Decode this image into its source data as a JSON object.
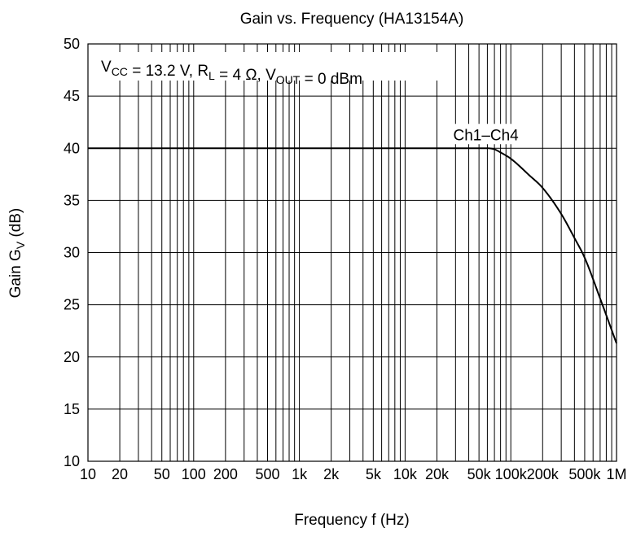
{
  "chart_data": {
    "type": "line",
    "title": "Gain vs. Frequency (HA13154A)",
    "xlabel": {
      "main": "Frequency  f  (Hz)"
    },
    "ylabel": {
      "main": "Gain  G",
      "sub": "V",
      "unit": "  (dB)"
    },
    "x_scale": "log",
    "xlim": [
      10,
      1000000
    ],
    "ylim": [
      10,
      50
    ],
    "grid": true,
    "x_ticks": [
      {
        "value": 10,
        "label": "10"
      },
      {
        "value": 20,
        "label": "20"
      },
      {
        "value": 50,
        "label": "50"
      },
      {
        "value": 100,
        "label": "100"
      },
      {
        "value": 200,
        "label": "200"
      },
      {
        "value": 500,
        "label": "500"
      },
      {
        "value": 1000,
        "label": "1k"
      },
      {
        "value": 2000,
        "label": "2k"
      },
      {
        "value": 5000,
        "label": "5k"
      },
      {
        "value": 10000,
        "label": "10k"
      },
      {
        "value": 20000,
        "label": "20k"
      },
      {
        "value": 50000,
        "label": "50k"
      },
      {
        "value": 100000,
        "label": "100k"
      },
      {
        "value": 200000,
        "label": "200k"
      },
      {
        "value": 500000,
        "label": "500k"
      },
      {
        "value": 1000000,
        "label": "1M"
      }
    ],
    "y_ticks": [
      10,
      15,
      20,
      25,
      30,
      35,
      40,
      45,
      50
    ],
    "conditions": [
      {
        "text": "V",
        "sub": "CC"
      },
      {
        "text": " = 13.2 V, R",
        "sub": "L"
      },
      {
        "text": " = 4 Ω, V",
        "sub": "OUT"
      },
      {
        "text": " = 0 dBm",
        "sub": ""
      }
    ],
    "series": [
      {
        "name": "Ch1–Ch4",
        "x": [
          10,
          100,
          1000,
          10000,
          40000,
          60000,
          70000,
          80000,
          100000,
          150000,
          200000,
          300000,
          400000,
          500000,
          700000,
          1000000
        ],
        "y": [
          40,
          40,
          40,
          40,
          40,
          40,
          39.9,
          39.6,
          39.0,
          37.4,
          36.2,
          33.7,
          31.4,
          29.5,
          25.6,
          21.3
        ]
      }
    ]
  }
}
